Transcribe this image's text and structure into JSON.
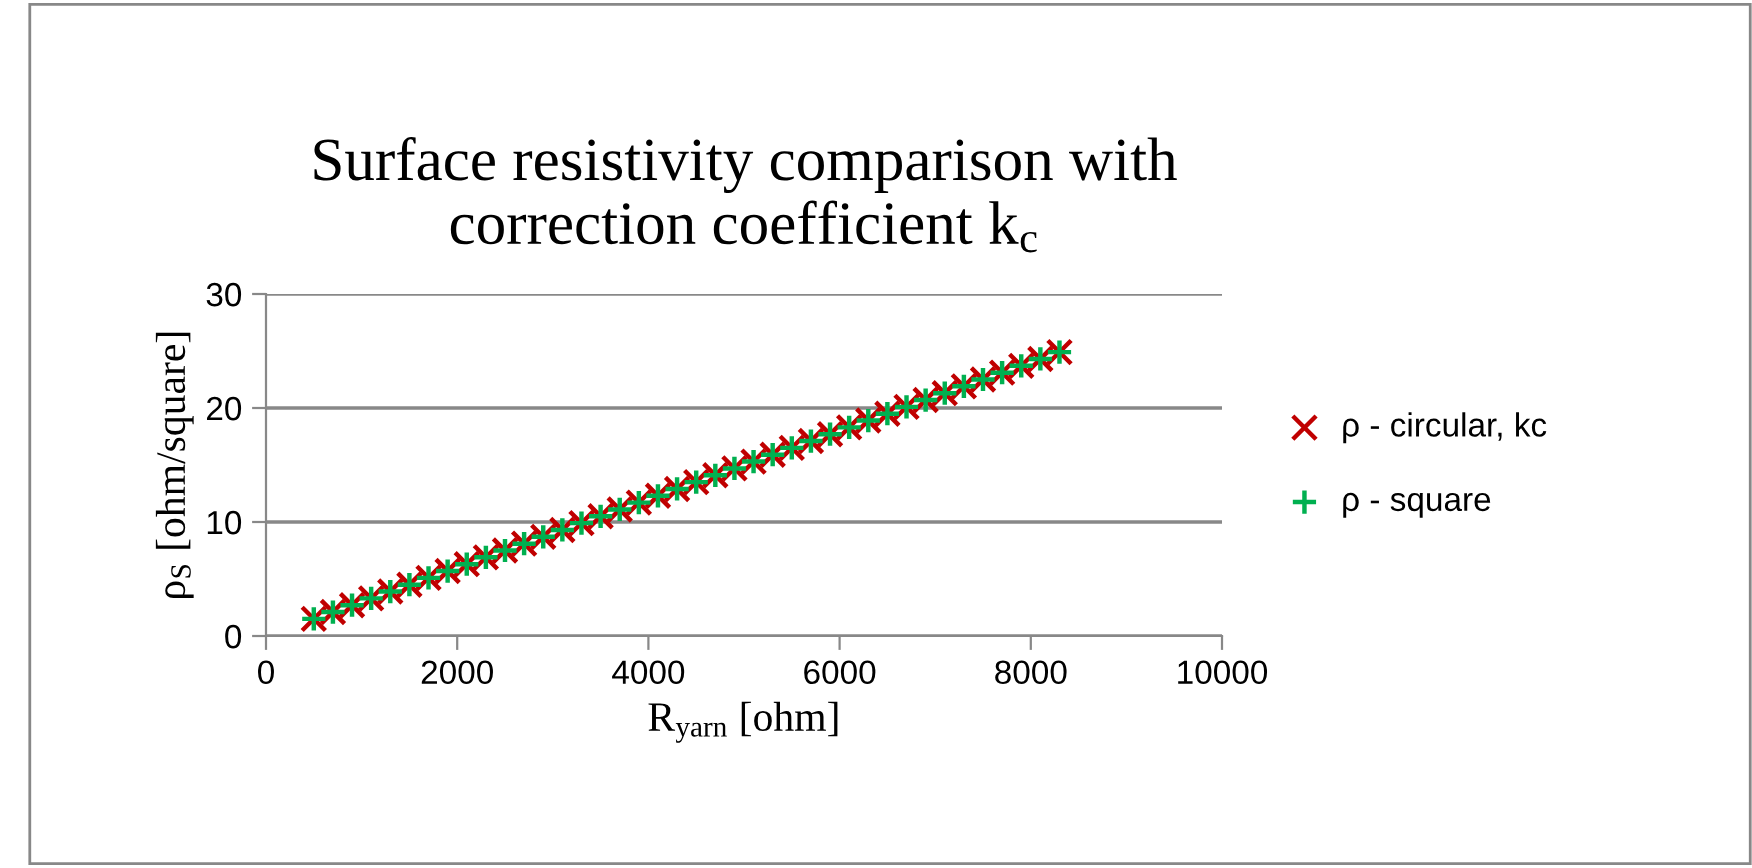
{
  "chart_data": {
    "type": "scatter",
    "title": "Surface resistivity comparison with\ncorrection coefficient k$_{c}$",
    "xlabel": "R$_{yarn}$ [ohm]",
    "ylabel": "ρ$_{S}$ [ohm/square]",
    "x": [
      500,
      700,
      900,
      1100,
      1300,
      1500,
      1700,
      1900,
      2100,
      2300,
      2500,
      2700,
      2900,
      3100,
      3300,
      3500,
      3700,
      3900,
      4100,
      4300,
      4500,
      4700,
      4900,
      5100,
      5300,
      5500,
      5700,
      5900,
      6100,
      6300,
      6500,
      6700,
      6900,
      7100,
      7300,
      7500,
      7700,
      7900,
      8100,
      8300
    ],
    "series": [
      {
        "name": "ρ - circular, kc",
        "color": "#c00000",
        "marker": "cross",
        "values": [
          1.5,
          2.1,
          2.7,
          3.3,
          3.9,
          4.5,
          5.1,
          5.7,
          6.3,
          6.9,
          7.5,
          8.1,
          8.7,
          9.3,
          9.9,
          10.5,
          11.1,
          11.7,
          12.3,
          12.9,
          13.5,
          14.1,
          14.7,
          15.3,
          15.9,
          16.5,
          17.1,
          17.7,
          18.3,
          18.9,
          19.5,
          20.1,
          20.7,
          21.3,
          21.9,
          22.5,
          23.1,
          23.7,
          24.3,
          24.9
        ]
      },
      {
        "name": "ρ - square",
        "color": "#00b050",
        "marker": "plus",
        "values": [
          1.5,
          2.1,
          2.7,
          3.3,
          3.9,
          4.5,
          5.1,
          5.7,
          6.3,
          6.9,
          7.5,
          8.1,
          8.7,
          9.3,
          9.9,
          10.5,
          11.1,
          11.7,
          12.3,
          12.9,
          13.5,
          14.1,
          14.7,
          15.3,
          15.9,
          16.5,
          17.1,
          17.7,
          18.3,
          18.9,
          19.5,
          20.1,
          20.7,
          21.3,
          21.9,
          22.5,
          23.1,
          23.7,
          24.3,
          24.9
        ]
      }
    ],
    "xlim": [
      0,
      10000
    ],
    "xticks": [
      0,
      2000,
      4000,
      6000,
      8000,
      10000
    ],
    "ylim": [
      0,
      30
    ],
    "yticks": [
      0,
      10,
      20,
      30
    ],
    "grid": "y",
    "legend": "right"
  }
}
